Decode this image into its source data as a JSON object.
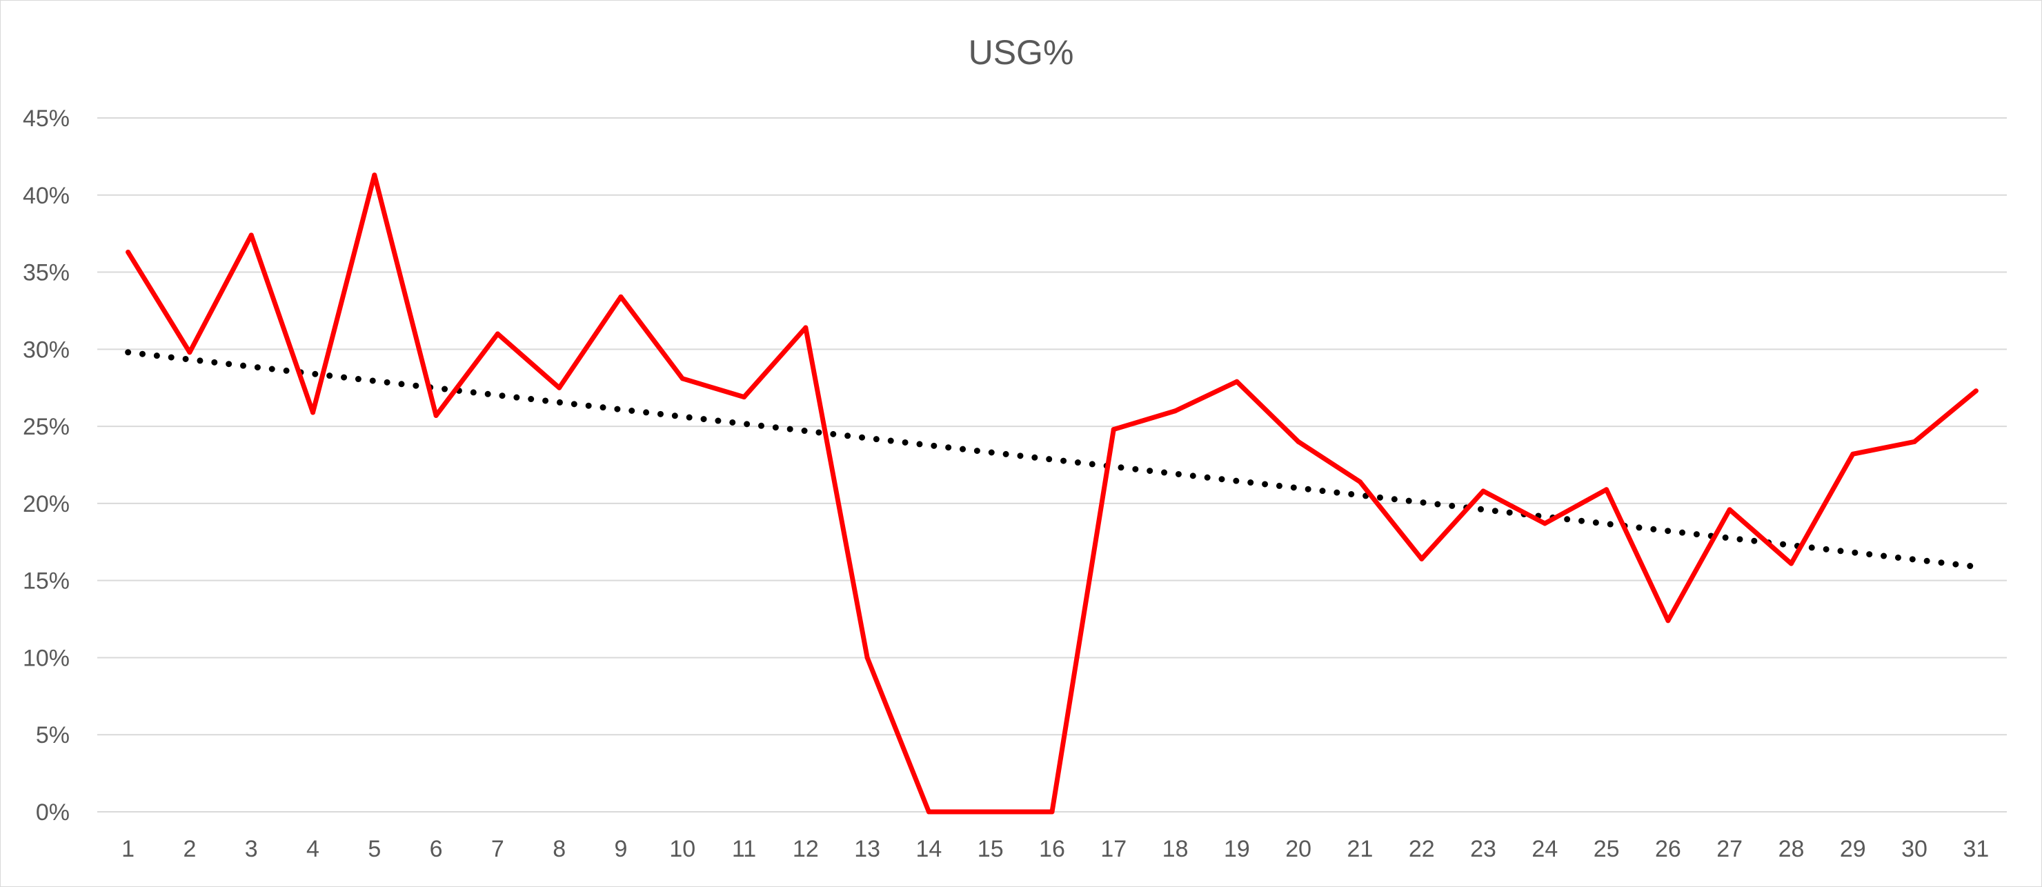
{
  "chart_data": {
    "type": "line",
    "title": "USG%",
    "xlabel": "",
    "ylabel": "",
    "categories": [
      "1",
      "2",
      "3",
      "4",
      "5",
      "6",
      "7",
      "8",
      "9",
      "10",
      "11",
      "12",
      "13",
      "14",
      "15",
      "16",
      "17",
      "18",
      "19",
      "20",
      "21",
      "22",
      "23",
      "24",
      "25",
      "26",
      "27",
      "28",
      "29",
      "30",
      "31"
    ],
    "series": [
      {
        "color": "#ff0000",
        "values": [
          36.3,
          29.8,
          37.4,
          25.9,
          41.3,
          25.7,
          31.0,
          27.5,
          33.4,
          28.1,
          26.9,
          31.4,
          10.0,
          0.0,
          0.0,
          0.0,
          24.8,
          26.0,
          27.9,
          24.0,
          21.4,
          16.4,
          20.8,
          18.7,
          20.9,
          12.4,
          19.6,
          16.1,
          23.2,
          24.0,
          27.3
        ]
      }
    ],
    "trendline": {
      "type": "linear",
      "style": "dotted",
      "color": "#000000",
      "start_value": 29.8,
      "end_value": 15.9
    },
    "yticks": [
      "0%",
      "5%",
      "10%",
      "15%",
      "20%",
      "25%",
      "30%",
      "35%",
      "40%",
      "45%"
    ],
    "ylim": [
      0,
      45
    ],
    "grid": true,
    "gridline_color": "#d9d9d9",
    "legend": "none"
  }
}
